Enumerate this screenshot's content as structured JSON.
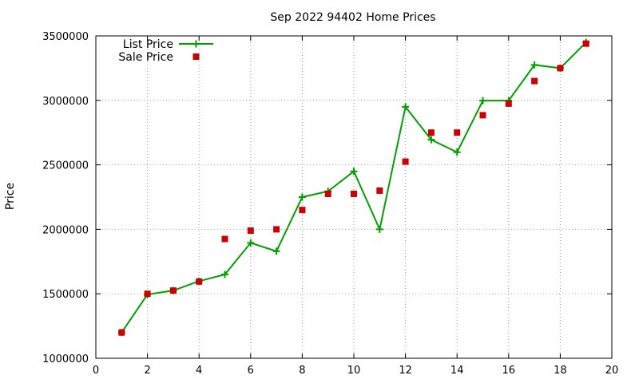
{
  "chart_data": {
    "type": "line",
    "title": "Sep 2022 94402 Home Prices",
    "xlabel": "",
    "ylabel": "Price",
    "xlim": [
      0,
      20
    ],
    "ylim": [
      1000000,
      3500000
    ],
    "x_ticks": [
      0,
      2,
      4,
      6,
      8,
      10,
      12,
      14,
      16,
      18,
      20
    ],
    "y_ticks": [
      1000000,
      1500000,
      2000000,
      2500000,
      3000000,
      3500000
    ],
    "x_tick_labels": [
      "0",
      "2",
      "4",
      "6",
      "8",
      "10",
      "12",
      "14",
      "16",
      "18",
      "20"
    ],
    "y_tick_labels": [
      "1000000",
      "1500000",
      "2000000",
      "2500000",
      "3000000",
      "3500000"
    ],
    "grid": true,
    "legend_position": "top-left",
    "series": [
      {
        "name": "List Price",
        "style": "line-with-plus-markers",
        "color": "#00a000",
        "x": [
          1,
          2,
          3,
          4,
          5,
          6,
          7,
          8,
          9,
          10,
          11,
          12,
          13,
          14,
          15,
          16,
          17,
          18,
          19
        ],
        "values": [
          1200000,
          1495000,
          1525000,
          1598000,
          1650000,
          1895000,
          1830000,
          2250000,
          2295000,
          2450000,
          2000000,
          2950000,
          2695000,
          2598000,
          2998000,
          2998000,
          3275000,
          3250000,
          3450000
        ]
      },
      {
        "name": "Sale Price",
        "style": "square-markers",
        "color": "#cc0000",
        "x": [
          1,
          2,
          3,
          4,
          5,
          6,
          7,
          8,
          9,
          10,
          11,
          12,
          13,
          14,
          15,
          16,
          17,
          18,
          19
        ],
        "values": [
          1200000,
          1500000,
          1525000,
          1595000,
          1925000,
          1990000,
          2000000,
          2150000,
          2275000,
          2275000,
          2300000,
          2525000,
          2750000,
          2750000,
          2885000,
          2975000,
          3150000,
          3250000,
          3440000
        ]
      }
    ]
  }
}
